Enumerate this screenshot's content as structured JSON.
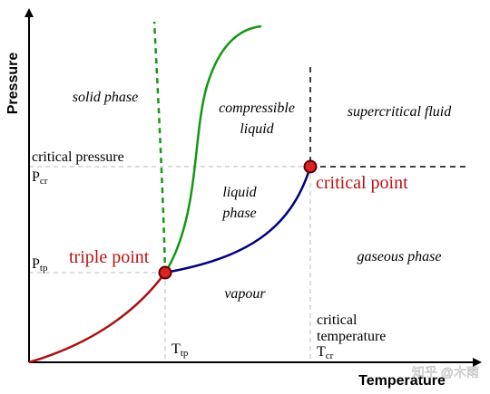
{
  "axes": {
    "y_label": "Pressure",
    "x_label": "Temperature"
  },
  "regions": {
    "solid": "solid phase",
    "compressible_line1": "compressible",
    "compressible_line2": "liquid",
    "supercritical": "supercritical fluid",
    "liquid_line1": "liquid",
    "liquid_line2": "phase",
    "gaseous": "gaseous phase",
    "vapour": "vapour"
  },
  "labels": {
    "critical_pressure": "critical pressure",
    "p_cr_main": "P",
    "p_cr_sub": "cr",
    "p_tp_main": "P",
    "p_tp_sub": "tp",
    "triple_point": "triple point",
    "critical_point": "critical point",
    "critical_temp_line1": "critical",
    "critical_temp_line2": "temperature",
    "t_cr_main": "T",
    "t_cr_sub": "cr",
    "t_tp_main": "T",
    "t_tp_sub": "tp"
  },
  "watermark": "知乎 @木雨",
  "colors": {
    "sublimation_curve": "#aa1111",
    "vaporization_curve": "#00007f",
    "fusion_curve": "#119911",
    "point_fill": "#dd2222",
    "label_red": "#bb1111",
    "guide_lines": "#bbbbbb"
  }
}
